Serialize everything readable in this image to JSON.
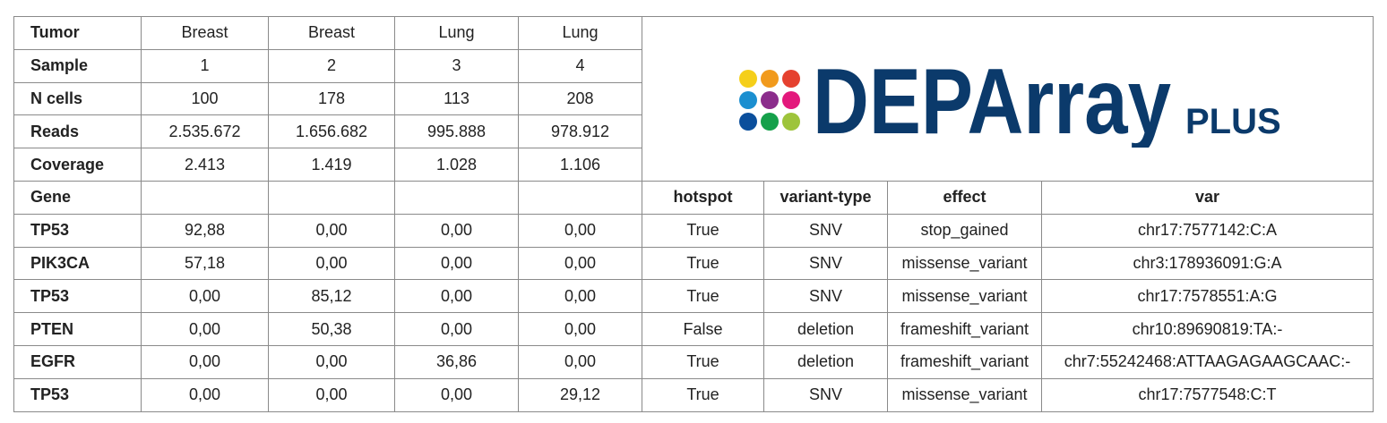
{
  "summary": {
    "rows": [
      {
        "label": "Tumor",
        "values": [
          "Breast",
          "Breast",
          "Lung",
          "Lung"
        ]
      },
      {
        "label": "Sample",
        "values": [
          "1",
          "2",
          "3",
          "4"
        ]
      },
      {
        "label": "N cells",
        "values": [
          "100",
          "178",
          "113",
          "208"
        ]
      },
      {
        "label": "Reads",
        "values": [
          "2.535.672",
          "1.656.682",
          "995.888",
          "978.912"
        ]
      },
      {
        "label": "Coverage",
        "values": [
          "2.413",
          "1.419",
          "1.028",
          "1.106"
        ]
      }
    ]
  },
  "logo": {
    "brand": "DEPArray",
    "suffix": "PLUS"
  },
  "variants": {
    "columns": {
      "gene": "Gene",
      "hotspot": "hotspot",
      "variant_type": "variant-type",
      "effect": "effect",
      "var": "var"
    },
    "rows": [
      {
        "gene": "TP53",
        "values": [
          "92,88",
          "0,00",
          "0,00",
          "0,00"
        ],
        "hotspot": "True",
        "variant_type": "SNV",
        "effect": "stop_gained",
        "var": "chr17:7577142:C:A"
      },
      {
        "gene": "PIK3CA",
        "values": [
          "57,18",
          "0,00",
          "0,00",
          "0,00"
        ],
        "hotspot": "True",
        "variant_type": "SNV",
        "effect": "missense_variant",
        "var": "chr3:178936091:G:A"
      },
      {
        "gene": "TP53",
        "values": [
          "0,00",
          "85,12",
          "0,00",
          "0,00"
        ],
        "hotspot": "True",
        "variant_type": "SNV",
        "effect": "missense_variant",
        "var": "chr17:7578551:A:G"
      },
      {
        "gene": "PTEN",
        "values": [
          "0,00",
          "50,38",
          "0,00",
          "0,00"
        ],
        "hotspot": "False",
        "variant_type": "deletion",
        "effect": "frameshift_variant",
        "var": "chr10:89690819:TA:-"
      },
      {
        "gene": "EGFR",
        "values": [
          "0,00",
          "0,00",
          "36,86",
          "0,00"
        ],
        "hotspot": "True",
        "variant_type": "deletion",
        "effect": "frameshift_variant",
        "var": "chr7:55242468:ATTAAGAGAAGCAAC:-"
      },
      {
        "gene": "TP53",
        "values": [
          "0,00",
          "0,00",
          "0,00",
          "29,12"
        ],
        "hotspot": "True",
        "variant_type": "SNV",
        "effect": "missense_variant",
        "var": "chr17:7577548:C:T"
      }
    ]
  }
}
